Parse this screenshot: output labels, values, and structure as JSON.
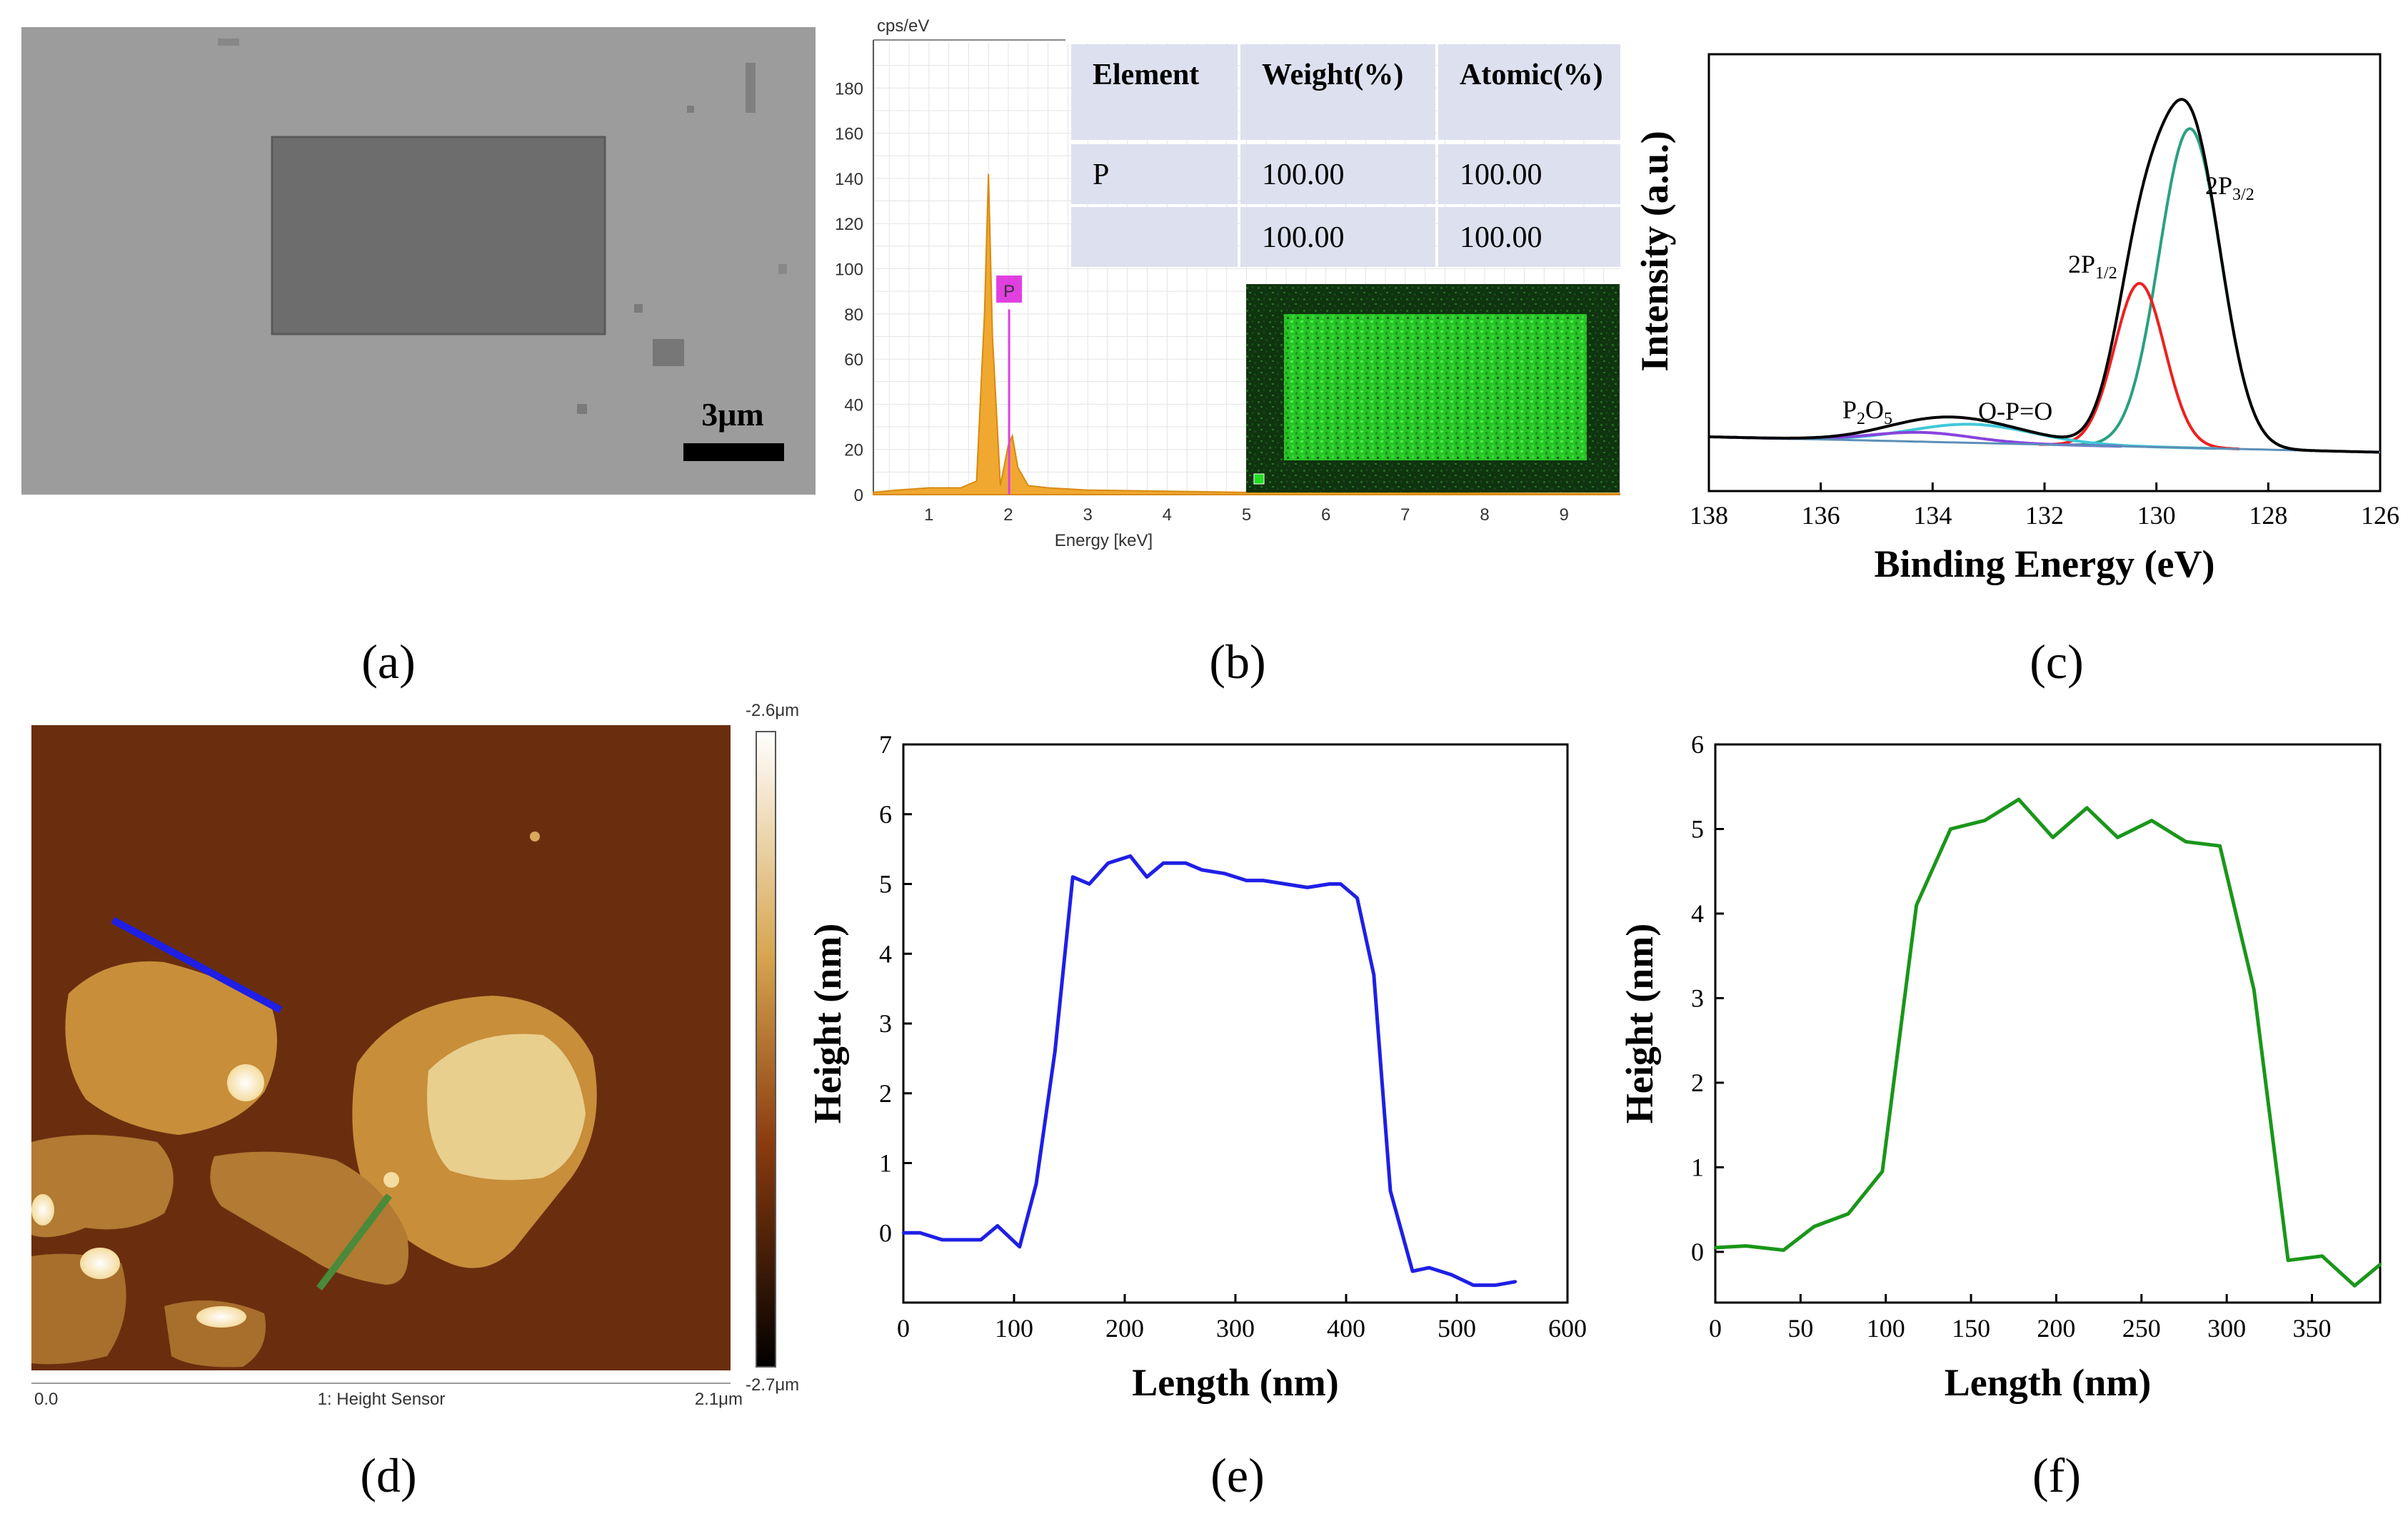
{
  "panels": {
    "a": {
      "label": "(a)",
      "scale_bar": "3μm"
    },
    "b": {
      "label": "(b)"
    },
    "c": {
      "label": "(c)"
    },
    "d": {
      "label": "(d)",
      "colorbar_max": "-2.6μm",
      "colorbar_min": "-2.7μm",
      "axis_start": "0.0",
      "axis_end": "2.1μm",
      "caption": "1: Height Sensor"
    },
    "e": {
      "label": "(e)"
    },
    "f": {
      "label": "(f)"
    }
  },
  "colors": {
    "blue": "#1f1fe6",
    "green": "#1a961a",
    "orange": "#f0a830",
    "magenta": "#e040e0",
    "red": "#ee2020",
    "teal": "#2aa080",
    "eds_green": "#22dd22"
  },
  "chart_data": [
    {
      "panel": "b",
      "type": "area",
      "ylabel": "cps/eV",
      "xlabel": "Energy [keV]",
      "xlim": [
        0.3,
        9.7
      ],
      "ylim": [
        0,
        200
      ],
      "xticks": [
        1,
        2,
        3,
        4,
        5,
        6,
        7,
        8,
        9
      ],
      "yticks": [
        0,
        20,
        40,
        60,
        80,
        100,
        120,
        140,
        160,
        180
      ],
      "x": [
        0.3,
        0.6,
        1.0,
        1.4,
        1.6,
        1.7,
        1.75,
        1.8,
        1.9,
        2.0,
        2.05,
        2.12,
        2.25,
        2.5,
        3.0,
        4.0,
        5.0,
        6.0,
        7.0,
        8.0,
        9.0,
        9.7
      ],
      "y": [
        1,
        2,
        3,
        3,
        6,
        80,
        142,
        70,
        4,
        22,
        26,
        12,
        4,
        3,
        2,
        1.5,
        1,
        1,
        0.8,
        0.6,
        0.5,
        0.5
      ],
      "peak_label": "P",
      "peak_x": 2.01,
      "table": {
        "headers": [
          "Element",
          "Weight(%)",
          "Atomic(%)"
        ],
        "rows": [
          [
            "P",
            "100.00",
            "100.00"
          ],
          [
            "",
            "100.00",
            "100.00"
          ]
        ]
      }
    },
    {
      "panel": "c",
      "type": "line",
      "xlabel": "Binding Energy (eV)",
      "ylabel": "Intensity (a.u.)",
      "xlim": [
        138,
        126
      ],
      "xticks": [
        138,
        136,
        134,
        132,
        130,
        128,
        126
      ],
      "ylim": [
        0,
        100
      ],
      "peaks": [
        {
          "name": "2P",
          "sub": "3/2",
          "center": 129.4,
          "width": 0.55,
          "height": 86,
          "color": "#2aa080"
        },
        {
          "name": "2P",
          "sub": "1/2",
          "center": 130.3,
          "width": 0.45,
          "height": 44,
          "color": "#ee2020"
        },
        {
          "name": "O-P=O",
          "sub": "",
          "center": 133.3,
          "width": 1.1,
          "height": 5,
          "color": "#40c8d8"
        },
        {
          "name": "P",
          "sub": "2",
          "name2": "O",
          "sub2": "5",
          "center": 134.2,
          "width": 0.9,
          "height": 2.5,
          "color": "#8844dd"
        }
      ]
    },
    {
      "panel": "e",
      "type": "line",
      "xlabel": "Length (nm)",
      "ylabel": "Height (nm)",
      "xlim": [
        0,
        600
      ],
      "ylim": [
        -1,
        7
      ],
      "xticks": [
        0,
        100,
        200,
        300,
        400,
        500,
        600
      ],
      "yticks": [
        0,
        1,
        2,
        3,
        4,
        5,
        6,
        7
      ],
      "x": [
        0,
        15,
        35,
        50,
        70,
        85,
        105,
        120,
        137,
        153,
        168,
        185,
        205,
        220,
        235,
        255,
        270,
        290,
        310,
        325,
        345,
        365,
        385,
        395,
        410,
        425,
        440,
        460,
        475,
        495,
        515,
        535,
        553
      ],
      "y": [
        0,
        0,
        -0.1,
        -0.1,
        -0.1,
        0.1,
        -0.2,
        0.7,
        2.6,
        5.1,
        5.0,
        5.3,
        5.4,
        5.1,
        5.3,
        5.3,
        5.2,
        5.15,
        5.05,
        5.05,
        5.0,
        4.95,
        5.0,
        5.0,
        4.8,
        3.7,
        0.6,
        -0.55,
        -0.5,
        -0.6,
        -0.75,
        -0.75,
        -0.7
      ]
    },
    {
      "panel": "f",
      "type": "line",
      "xlabel": "Length (nm)",
      "ylabel": "Height (nm)",
      "xlim": [
        0,
        390
      ],
      "ylim": [
        -0.6,
        6
      ],
      "xticks": [
        0,
        50,
        100,
        150,
        200,
        250,
        300,
        350
      ],
      "yticks": [
        0,
        1,
        2,
        3,
        4,
        5,
        6
      ],
      "x": [
        0,
        18,
        40,
        58,
        78,
        98,
        118,
        138,
        158,
        178,
        198,
        218,
        236,
        256,
        276,
        296,
        316,
        336,
        356,
        375,
        390
      ],
      "y": [
        0.05,
        0.07,
        0.02,
        0.3,
        0.45,
        0.95,
        4.1,
        5.0,
        5.1,
        5.35,
        4.9,
        5.25,
        4.9,
        5.1,
        4.85,
        4.8,
        3.1,
        -0.1,
        -0.05,
        -0.4,
        -0.15
      ]
    }
  ]
}
